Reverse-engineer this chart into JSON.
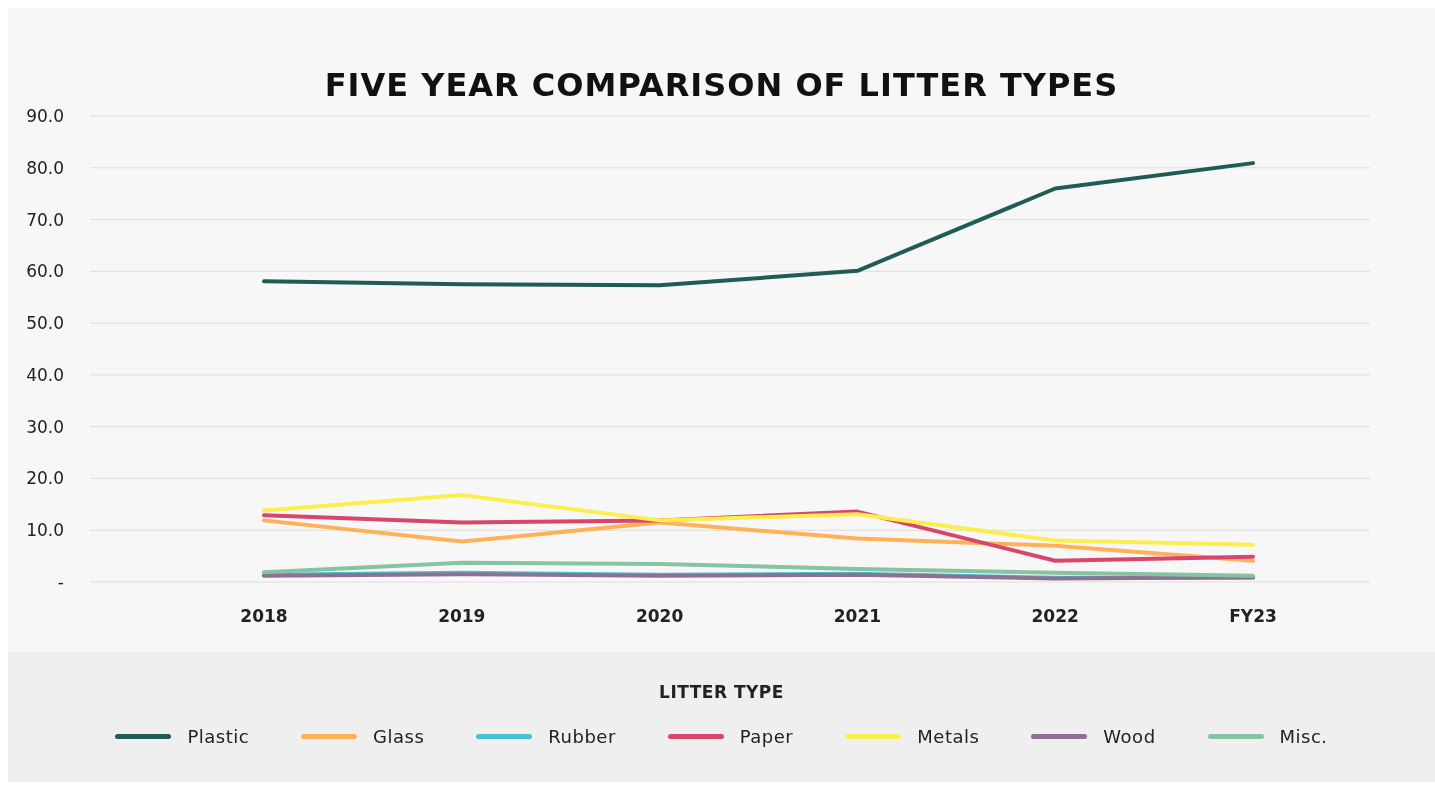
{
  "chart_data": {
    "type": "line",
    "title": "FIVE YEAR COMPARISON OF LITTER TYPES",
    "legend_title": "LITTER TYPE",
    "categories": [
      "2018",
      "2019",
      "2020",
      "2021",
      "2022",
      "FY23"
    ],
    "series": [
      {
        "name": "Plastic",
        "color": "#1f5c55",
        "values": [
          58.1,
          57.5,
          57.3,
          60.1,
          76.0,
          80.9
        ]
      },
      {
        "name": "Glass",
        "color": "#fdb25a",
        "values": [
          11.9,
          7.8,
          11.5,
          8.4,
          7.0,
          4.1
        ]
      },
      {
        "name": "Rubber",
        "color": "#45c3d4",
        "values": [
          1.4,
          1.8,
          1.4,
          1.6,
          0.8,
          0.8
        ]
      },
      {
        "name": "Paper",
        "color": "#d8476b",
        "values": [
          12.9,
          11.5,
          11.9,
          13.6,
          4.1,
          4.9
        ]
      },
      {
        "name": "Metals",
        "color": "#fbee4e",
        "values": [
          13.8,
          16.8,
          11.9,
          13.1,
          8.0,
          7.2
        ]
      },
      {
        "name": "Wood",
        "color": "#8e7192",
        "values": [
          1.2,
          1.5,
          1.2,
          1.4,
          0.7,
          0.9
        ]
      },
      {
        "name": "Misc.",
        "color": "#86c3a3",
        "values": [
          1.9,
          3.7,
          3.5,
          2.5,
          1.8,
          1.2
        ]
      }
    ],
    "ylim": [
      0,
      90
    ],
    "yticks": [
      {
        "value": 0,
        "label": "-"
      },
      {
        "value": 10,
        "label": "10.0"
      },
      {
        "value": 20,
        "label": "20.0"
      },
      {
        "value": 30,
        "label": "30.0"
      },
      {
        "value": 40,
        "label": "40.0"
      },
      {
        "value": 50,
        "label": "50.0"
      },
      {
        "value": 60,
        "label": "60.0"
      },
      {
        "value": 70,
        "label": "70.0"
      },
      {
        "value": 80,
        "label": "80.0"
      },
      {
        "value": 90,
        "label": "90.0"
      }
    ],
    "grid": "y",
    "legend": "bottom",
    "marker": "none",
    "line_style": "solid"
  }
}
